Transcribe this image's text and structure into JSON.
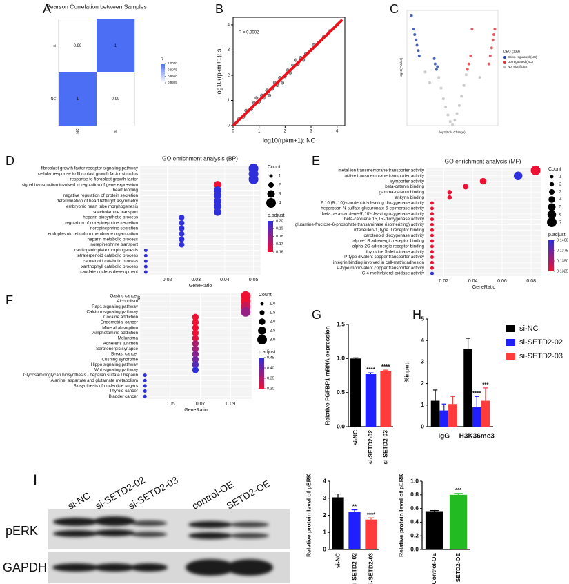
{
  "chart_data": [
    {
      "type": "heatmap",
      "panel": "A",
      "title": "Pearson Correlation between Samples",
      "rows": [
        "si",
        "NC"
      ],
      "cols": [
        "NC",
        "si"
      ],
      "values": [
        [
          0.99,
          1
        ],
        [
          1,
          0.99
        ]
      ],
      "legend_title": "R",
      "legend_ticks": [
        {
          "value": 1,
          "label": "1.0000"
        },
        {
          "value": 0.9975,
          "label": "0.9975"
        },
        {
          "value": 0.995,
          "label": "0.9950"
        },
        {
          "value": 0.9925,
          "label": "0.9925"
        }
      ],
      "low_color": "#ffffff",
      "high_color": "#4c6ef5"
    },
    {
      "type": "scatter",
      "panel": "B",
      "xlabel": "log10(rpkm+1): NC",
      "ylabel": "log10(rpkm+1): si",
      "annotation": "R = 0.9902",
      "xlim": [
        0,
        4.3
      ],
      "ylim": [
        0,
        4.3
      ],
      "xticks": [
        0,
        1,
        2,
        3,
        4
      ],
      "yticks": [
        0,
        1,
        2,
        3,
        4
      ],
      "color": "#888888",
      "x": [
        0.2,
        0.4,
        0.5,
        0.7,
        0.8,
        1.0,
        1.1,
        1.2,
        1.3,
        1.5,
        1.6,
        1.7,
        1.8,
        2.0,
        2.1,
        2.2,
        2.3,
        2.5,
        2.6,
        2.7,
        2.8,
        3.0,
        3.1,
        3.3,
        3.5,
        3.7,
        0.9,
        1.4,
        1.9,
        2.4
      ],
      "y": [
        0.25,
        0.35,
        0.6,
        0.65,
        0.9,
        0.95,
        1.2,
        1.1,
        1.4,
        1.45,
        1.7,
        1.6,
        1.9,
        1.95,
        2.2,
        2.1,
        2.4,
        2.45,
        2.7,
        2.6,
        2.85,
        3.0,
        3.2,
        3.3,
        3.55,
        3.75,
        1.1,
        1.2,
        1.7,
        2.6
      ],
      "fit_x": [
        0,
        4.2
      ],
      "fit_y": [
        0,
        4.2
      ],
      "fit_color": "#e8121c"
    },
    {
      "type": "scatter",
      "panel": "C",
      "xlabel": "log2(Fold Change)",
      "ylabel": "-log10(PValue)",
      "legend_title": "DEG (133)",
      "xlim": [
        -10,
        10
      ],
      "ylim": [
        0,
        4.3
      ],
      "series": [
        {
          "name": "Down-regulated (NC)",
          "color": "#1f3fa8",
          "x": [
            -9,
            -8.5,
            -8.3,
            -8,
            -7.8,
            -7.5,
            -7.3,
            -4,
            -3.8,
            -3.5,
            -3.3
          ],
          "y": [
            4.1,
            3.6,
            3.4,
            3.2,
            3.0,
            2.8,
            2.6,
            2.5,
            2.3,
            2.1,
            2.2
          ]
        },
        {
          "name": "Up-regulated (NC)",
          "color": "#e0303a",
          "x": [
            3.3,
            3.6,
            4,
            4.3,
            8,
            8.3,
            8.6,
            8.9,
            9.1,
            9.3
          ],
          "y": [
            2.1,
            2.3,
            2.6,
            3.6,
            2.3,
            2.6,
            2.9,
            3.2,
            3.4,
            3.6
          ]
        },
        {
          "name": "Not significant",
          "color": "#bdbdbd",
          "x": [
            -3,
            -2.5,
            -2,
            -1.5,
            -1,
            -0.5,
            0,
            0.5,
            1,
            1.5,
            2,
            2.5,
            3,
            -6,
            -5,
            6
          ],
          "y": [
            1.8,
            1.4,
            1.0,
            0.7,
            0.4,
            0.15,
            0.05,
            0.2,
            0.45,
            0.75,
            1.1,
            1.5,
            1.9,
            2.0,
            1.6,
            1.8
          ]
        }
      ]
    },
    {
      "type": "dot",
      "panel": "D",
      "title": "GO enrichment analysis (BP)",
      "xlabel": "GeneRatio",
      "categories": [
        "fibroblast growth factor receptor signaling pathway",
        "cellular response to fibroblast growth factor stimulus",
        "response to fibroblast growth factor",
        "signal transduction involved in regulation of gene expression",
        "heart looping",
        "negative regulation of protein secretion",
        "determination of heart left/right asymmetry",
        "embryonic heart tube morphogenesis",
        "catecholamine transport",
        "heparin biosynthetic process",
        "regulation of norepinephrine secretion",
        "norepinephrine secretion",
        "endoplasmic reticulum membrane organization",
        "heparin metabolic process",
        "norepinephrine transport",
        "cardiogenic plate morphogenesis",
        "tetraterpenoid catabolic process",
        "carotenoid catabolic process",
        "xanthophyll catabolic process",
        "caudate nucleus development"
      ],
      "x": [
        0.05,
        0.05,
        0.05,
        0.0375,
        0.0375,
        0.0375,
        0.0375,
        0.0375,
        0.0375,
        0.025,
        0.025,
        0.025,
        0.025,
        0.025,
        0.025,
        0.0125,
        0.0125,
        0.0125,
        0.0125,
        0.0125
      ],
      "counts": [
        4,
        4,
        4,
        3,
        3,
        3,
        3,
        3,
        3,
        2,
        2,
        2,
        2,
        2,
        2,
        1,
        1,
        1,
        1,
        1
      ],
      "padj": [
        0.2,
        0.2,
        0.2,
        0.16,
        0.2,
        0.2,
        0.2,
        0.2,
        0.2,
        0.2,
        0.2,
        0.2,
        0.2,
        0.2,
        0.2,
        0.2,
        0.2,
        0.2,
        0.2,
        0.2
      ],
      "xlim": [
        0.0105,
        0.0525
      ],
      "xticks": [
        0.02,
        0.03,
        0.04,
        0.05
      ],
      "count_title": "Count",
      "count_ticks": [
        1,
        2,
        3,
        4
      ],
      "padj_title": "p.adjust",
      "padj_ticks": [
        {
          "value": 0.2,
          "label": "0.20"
        },
        0.19,
        0.18,
        0.17,
        0.16
      ],
      "low_color": "#ee1133",
      "high_color": "#2f2fdc"
    },
    {
      "type": "dot",
      "panel": "E",
      "title": "GO enrichment analysis (MF)",
      "xlabel": "GeneRatio",
      "categories": [
        "metal ion transmembrane transporter activity",
        "active transmembrane transporter activity",
        "symporter activity",
        "beta-catenin binding",
        "gamma-catenin binding",
        "ankyrin binding",
        "9,10 (9', 10')-carotenoid-cleaving dioxygenase activity",
        "heparosan-N-sulfate-glucuronate 5-epimerase activity",
        "beta,beta-carotene-9',10'-cleaving oxygenase activity",
        "beta-carotene 15,15'-dioxygenase activity",
        "glutamine-fructose-6-phosphate transaminase (isomerizing) activity",
        "interleukin-1, type II receptor binding",
        "carotenoid dioxygenase activity",
        "alpha-1B adrenergic receptor binding",
        "alpha-2C adrenergic receptor binding",
        "thyroxine 5-deiodinase activity",
        "P-type divalent copper transporter activity",
        "integrin binding involved in cell-matrix adhesion",
        "P-type monovalent copper transporter activity",
        "C-4 methylsterol oxidase activity"
      ],
      "x": [
        0.083,
        0.071,
        0.047,
        0.035,
        0.024,
        0.024,
        0.012,
        0.012,
        0.012,
        0.012,
        0.012,
        0.012,
        0.012,
        0.012,
        0.012,
        0.012,
        0.012,
        0.012,
        0.012,
        0.012
      ],
      "counts": [
        7,
        6,
        4,
        3,
        2,
        2,
        1,
        1,
        1,
        1,
        1,
        1,
        1,
        1,
        1,
        1,
        1,
        1,
        1,
        1
      ],
      "padj": [
        0.1325,
        0.14,
        0.1325,
        0.1325,
        0.1325,
        0.1325,
        0.1325,
        0.1325,
        0.1325,
        0.1325,
        0.1325,
        0.1325,
        0.1325,
        0.1325,
        0.1325,
        0.1325,
        0.1325,
        0.1325,
        0.1325,
        0.14
      ],
      "xlim": [
        0.008,
        0.087
      ],
      "xticks": [
        0.02,
        0.04,
        0.06,
        0.08
      ],
      "count_title": "Count",
      "count_ticks": [
        1,
        2,
        3,
        4,
        5,
        6,
        7
      ],
      "padj_title": "p.adjust",
      "padj_ticks": [
        {
          "value": 0.14,
          "label": "0.1400"
        },
        {
          "value": 0.1375,
          "label": "0.1375"
        },
        {
          "value": 0.135,
          "label": "0.1350"
        },
        {
          "value": 0.1325,
          "label": "0.1325"
        }
      ],
      "low_color": "#ee1133",
      "high_color": "#2f2fdc"
    },
    {
      "type": "dot",
      "panel": "F",
      "title": "KEGG enrichment analysis",
      "xlabel": "GeneRatio",
      "categories": [
        "Gastric cancer",
        "Alcoholism",
        "Rap1 signaling pathway",
        "Calcium signaling pathway",
        "Cocaine addiction",
        "Endometrial cancer",
        "Mineral absorption",
        "Amphetamine addiction",
        "Melanoma",
        "Adherens junction",
        "Serotonergic synapse",
        "Breast cancer",
        "Cushing syndrome",
        "Hippo signaling pathway",
        "Wnt signaling pathway",
        "Glycosaminoglycan biosynthesis - heparan sulfate / heparin",
        "Alanine, aspartate and glutamate metabolism",
        "Biosynthesis of nucleotide sugars",
        "Thyroid cancer",
        "Bladder cancer"
      ],
      "x": [
        0.1,
        0.1,
        0.1,
        0.1,
        0.0667,
        0.0667,
        0.0667,
        0.0667,
        0.0667,
        0.0667,
        0.0667,
        0.0667,
        0.0667,
        0.0667,
        0.0667,
        0.0333,
        0.0333,
        0.0333,
        0.0333,
        0.0333
      ],
      "counts": [
        3,
        3,
        3,
        3,
        2,
        2,
        2,
        2,
        2,
        2,
        2,
        2,
        2,
        2,
        2,
        1,
        1,
        1,
        1,
        1
      ],
      "padj": [
        0.3,
        0.3,
        0.33,
        0.37,
        0.3,
        0.3,
        0.3,
        0.3,
        0.31,
        0.35,
        0.36,
        0.38,
        0.4,
        0.42,
        0.45,
        0.45,
        0.47,
        0.48,
        0.48,
        0.48
      ],
      "xlim": [
        0.03,
        0.104
      ],
      "xticks": [
        0.05,
        0.07,
        0.09
      ],
      "count_title": "Count",
      "count_ticks": [
        {
          "value": 1,
          "label": "1.0"
        },
        1.5,
        {
          "value": 2,
          "label": "2.0"
        },
        2.5,
        {
          "value": 3,
          "label": "3.0"
        }
      ],
      "padj_title": "p.adjust",
      "padj_ticks": [
        0.45,
        {
          "value": 0.4,
          "label": "0.40"
        },
        0.35,
        {
          "value": 0.3,
          "label": "0.30"
        }
      ],
      "low_color": "#ee1133",
      "high_color": "#2f2fdc"
    },
    {
      "type": "bar",
      "panel": "G",
      "ylabel": "Relative FGFBP1 mRNA expression",
      "categories": [
        "si-NC",
        "si-SETD2-02",
        "si-SETD2-03"
      ],
      "values": [
        1.0,
        0.77,
        0.82
      ],
      "errors": [
        0.01,
        0.02,
        0.01
      ],
      "significance": [
        null,
        "****",
        "****"
      ],
      "colors": [
        "#000000",
        "#1f1fff",
        "#ff3b3b"
      ],
      "ylim": [
        0,
        1.5
      ],
      "yticks": [
        {
          "value": 0,
          "label": "0.0"
        },
        0.5,
        {
          "value": 1,
          "label": "1.0"
        },
        1.5
      ]
    },
    {
      "type": "bar",
      "panel": "H",
      "ylabel": "%input",
      "categories": [
        "IgG",
        "H3K36me3"
      ],
      "ylim": [
        0,
        5
      ],
      "yticks": [
        0,
        1,
        2,
        3,
        4,
        5
      ],
      "series": [
        {
          "name": "si-NC",
          "color": "#000000",
          "values": [
            1.2,
            3.6
          ],
          "errors": [
            0.5,
            0.5
          ],
          "significance": [
            null,
            null
          ]
        },
        {
          "name": "si-SETD2-02",
          "color": "#1f1fff",
          "values": [
            0.75,
            0.9
          ],
          "errors": [
            0.3,
            0.5
          ],
          "significance": [
            null,
            "****"
          ]
        },
        {
          "name": "si-SETD2-03",
          "color": "#ff3b3b",
          "values": [
            1.05,
            1.2
          ],
          "errors": [
            0.35,
            0.6
          ],
          "significance": [
            null,
            "***"
          ]
        }
      ]
    },
    {
      "type": "bar",
      "ylabel": "Relative protein level of pERK",
      "categories": [
        "si-NC",
        "si-SETD2-02",
        "si-SETD2-03"
      ],
      "values": [
        3.05,
        2.2,
        1.75
      ],
      "errors": [
        0.2,
        0.12,
        0.1
      ],
      "significance": [
        null,
        "**",
        "****"
      ],
      "colors": [
        "#000000",
        "#1f1fff",
        "#ff3b3b"
      ],
      "ylim": [
        0,
        4
      ],
      "yticks": [
        0,
        1,
        2,
        3,
        4
      ]
    },
    {
      "type": "bar",
      "ylabel": "Relative protein level of pERK",
      "categories": [
        "Control-OE",
        "SETD2-OE"
      ],
      "values": [
        0.56,
        0.8
      ],
      "errors": [
        0.01,
        0.02
      ],
      "significance": [
        null,
        "***"
      ],
      "colors": [
        "#000000",
        "#22bb22"
      ],
      "ylim": [
        0,
        1.0
      ],
      "yticks": [
        {
          "value": 0,
          "label": "0.0"
        },
        0.2,
        0.4,
        0.6,
        0.8,
        {
          "value": 1,
          "label": "1.0"
        }
      ]
    }
  ],
  "blot": {
    "panel": "I",
    "lanes": [
      "si-NC",
      "si-SETD2-02",
      "si-SETD2-03",
      "control-OE",
      "SETD2-OE"
    ],
    "rows": [
      "pERK",
      "GAPDH"
    ]
  }
}
